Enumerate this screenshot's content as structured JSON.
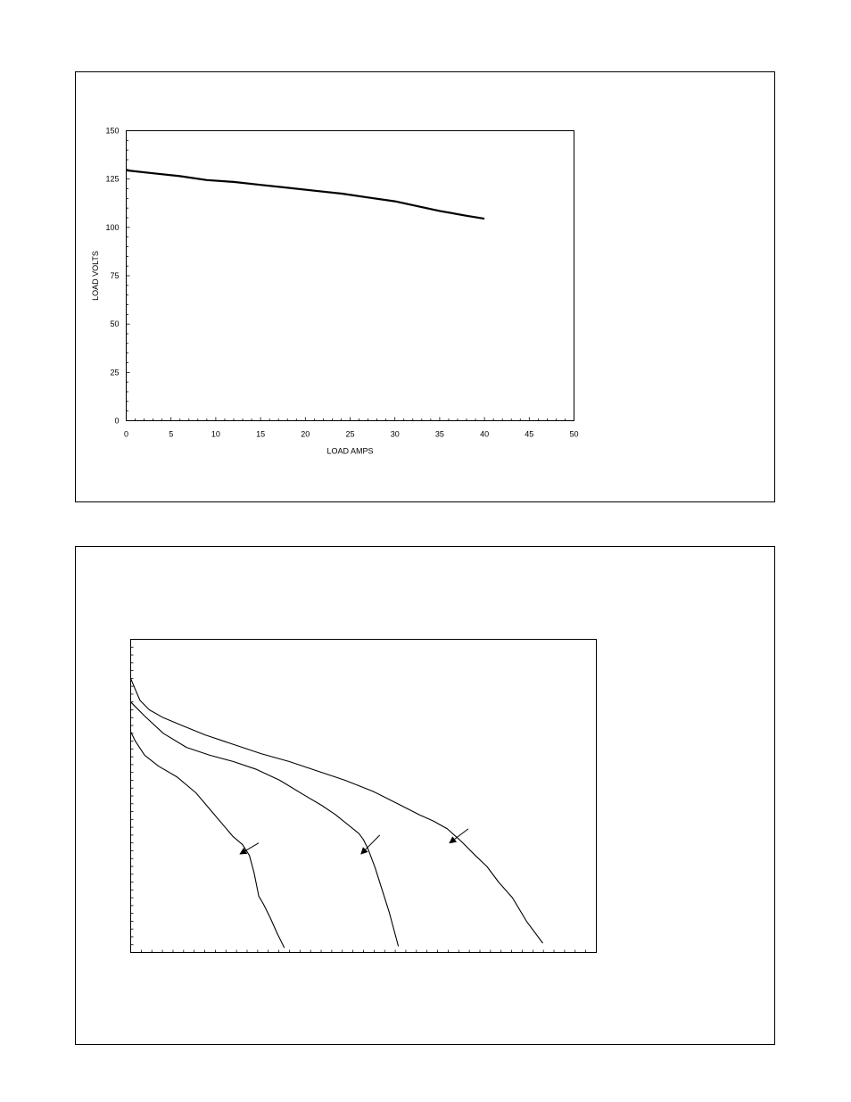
{
  "chart_data": [
    {
      "type": "line",
      "title": "",
      "xlabel": "LOAD AMPS",
      "ylabel": "LOAD VOLTS",
      "xlim": [
        0,
        50
      ],
      "ylim": [
        0,
        150
      ],
      "x_ticks": [
        "0",
        "5",
        "10",
        "15",
        "20",
        "25",
        "30",
        "35",
        "40",
        "45",
        "50"
      ],
      "y_ticks": [
        "0",
        "25",
        "50",
        "75",
        "100",
        "125",
        "150"
      ],
      "grid": false,
      "series": [
        {
          "x": [
            0,
            3,
            6,
            9,
            12,
            15,
            18,
            21,
            24,
            27,
            30,
            32,
            35,
            38,
            40
          ],
          "y": [
            129.5,
            128,
            126.5,
            124.5,
            123.5,
            122,
            120.5,
            119,
            117.5,
            115.5,
            113.5,
            111.5,
            108.5,
            106,
            104.5
          ]
        }
      ]
    },
    {
      "type": "line",
      "title": "",
      "xlabel": "",
      "ylabel": "",
      "xlim": [
        0,
        100
      ],
      "ylim": [
        0,
        100
      ],
      "grid": false,
      "series": [
        {
          "x": [
            0,
            1,
            3,
            6,
            10,
            14,
            18,
            22,
            24,
            25.5,
            26.5,
            27.5,
            28.5,
            30,
            31.5,
            33
          ],
          "y": [
            70.5,
            67.5,
            63,
            59.5,
            56,
            51,
            44,
            37,
            34.5,
            31,
            25.5,
            18,
            15.5,
            11,
            6,
            1.5
          ]
        },
        {
          "x": [
            0,
            3,
            7,
            12,
            17,
            22,
            27,
            32,
            37,
            41,
            44,
            49,
            50,
            51,
            52.5,
            54,
            55.5,
            57.5
          ],
          "y": [
            80,
            75.5,
            70,
            65.5,
            63,
            61,
            58.5,
            55,
            50.5,
            47,
            44,
            38,
            36,
            33,
            27,
            20,
            13,
            2
          ]
        },
        {
          "x": [
            0,
            1,
            2,
            4,
            7,
            11,
            16,
            22,
            28,
            34,
            40,
            46,
            52,
            58,
            62,
            65,
            68,
            71,
            74,
            76.5,
            79,
            82,
            85,
            88.5
          ],
          "y": [
            87.5,
            84,
            80.5,
            77.5,
            75,
            72.5,
            69.5,
            66.5,
            63.5,
            61,
            58,
            55,
            51.5,
            47,
            44,
            42,
            39.5,
            35.5,
            31,
            27.5,
            22.5,
            17.5,
            10,
            3
          ]
        }
      ],
      "arrows": [
        {
          "from": [
            27.5,
            35
          ],
          "to": [
            23.5,
            31.5
          ]
        },
        {
          "from": [
            53.5,
            37.5
          ],
          "to": [
            49.5,
            31.5
          ]
        },
        {
          "from": [
            72.5,
            39.5
          ],
          "to": [
            68.5,
            35
          ]
        }
      ]
    }
  ]
}
